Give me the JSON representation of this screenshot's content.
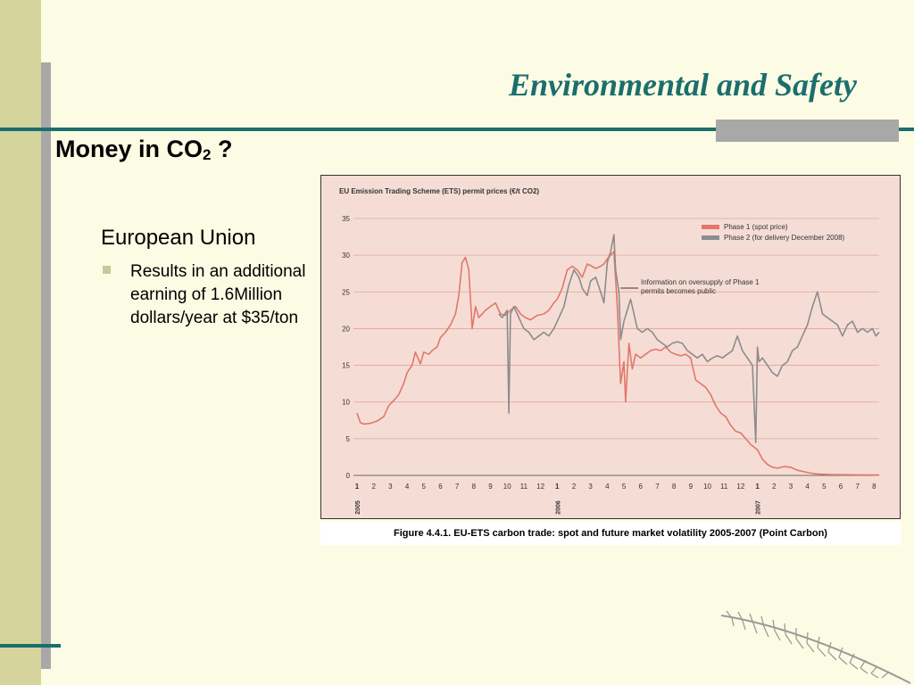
{
  "slide": {
    "title": "Environmental and Safety",
    "heading_text": "Money in CO",
    "heading_sub": "2",
    "heading_tail": " ?",
    "level1": "European Union",
    "bullet": "Results in an additional earning of 1.6Million dollars/year at $35/ton",
    "caption": "Figure 4.4.1. EU-ETS carbon trade: spot and future market volatility 2005-2007 (Point Carbon)"
  },
  "colors": {
    "accent": "#1c6e6e",
    "sidebar": "#d4d49c",
    "phase1": "#e2776a",
    "phase2": "#8c8c8c",
    "chart_bg": "#f5ddd6"
  },
  "chart_data": {
    "type": "line",
    "title": "EU Emission Trading Scheme (ETS) permit prices (€/t CO2)",
    "ylim": [
      0,
      35
    ],
    "y_ticks": [
      "0",
      "5",
      "10",
      "15",
      "20",
      "25",
      "30",
      "35"
    ],
    "x_ticks": [
      "1",
      "2",
      "3",
      "4",
      "5",
      "6",
      "7",
      "8",
      "9",
      "10",
      "11",
      "12",
      "1",
      "2",
      "3",
      "4",
      "5",
      "6",
      "7",
      "8",
      "9",
      "10",
      "11",
      "12",
      "1",
      "2",
      "3",
      "4",
      "5",
      "6",
      "7",
      "8"
    ],
    "year_labels": [
      {
        "label": "2005",
        "month_index": 0
      },
      {
        "label": "2006",
        "month_index": 12
      },
      {
        "label": "2007",
        "month_index": 24
      }
    ],
    "xlim": [
      0,
      31.3
    ],
    "grid": "horizontal",
    "legend_position": "top-right",
    "annotation": {
      "lines": [
        "Information on oversupply of Phase 1",
        "permits becomes public"
      ],
      "x": 15.8,
      "y": 26.5
    },
    "series": [
      {
        "name": "Phase 1 (spot price)",
        "x": [
          0,
          0.2,
          0.4,
          0.8,
          1.2,
          1.6,
          1.9,
          2.2,
          2.5,
          2.8,
          3.0,
          3.3,
          3.5,
          3.8,
          4.0,
          4.3,
          4.5,
          4.8,
          5.0,
          5.3,
          5.6,
          5.9,
          6.1,
          6.3,
          6.5,
          6.7,
          6.9,
          7.1,
          7.3,
          7.5,
          7.7,
          8.0,
          8.3,
          8.6,
          8.9,
          9.2,
          9.5,
          9.8,
          10.1,
          10.4,
          10.8,
          11.2,
          11.5,
          11.8,
          12.0,
          12.3,
          12.6,
          12.9,
          13.2,
          13.5,
          13.8,
          14.0,
          14.3,
          14.6,
          14.8,
          15.0,
          15.2,
          15.4,
          15.6,
          15.8,
          16.0,
          16.1,
          16.3,
          16.5,
          16.7,
          17.0,
          17.3,
          17.6,
          17.9,
          18.2,
          18.5,
          18.8,
          19.1,
          19.4,
          19.7,
          20.0,
          20.3,
          20.6,
          20.9,
          21.2,
          21.5,
          21.8,
          22.1,
          22.4,
          22.7,
          23.0,
          23.3,
          23.6,
          24.0,
          24.3,
          24.6,
          24.9,
          25.2,
          25.6,
          26.0,
          26.4,
          26.8,
          27.2,
          27.6,
          28.0,
          28.5,
          29.0,
          29.5,
          30.0,
          30.5,
          31.0,
          31.3
        ],
        "values": [
          8.5,
          7.2,
          7.0,
          7.1,
          7.4,
          8.0,
          9.5,
          10.2,
          11.0,
          12.5,
          14.0,
          15.0,
          16.8,
          15.2,
          16.8,
          16.5,
          17.0,
          17.5,
          18.8,
          19.5,
          20.5,
          22.0,
          24.5,
          29.0,
          29.7,
          28.0,
          20.0,
          23.0,
          21.5,
          22.0,
          22.5,
          23.0,
          23.5,
          22.0,
          21.8,
          22.5,
          23.0,
          22.0,
          21.5,
          21.2,
          21.8,
          22.0,
          22.5,
          23.5,
          24.0,
          25.5,
          28.0,
          28.5,
          28.0,
          27.0,
          28.8,
          28.6,
          28.2,
          28.5,
          28.8,
          29.5,
          30.0,
          30.5,
          23.0,
          12.5,
          15.5,
          10.0,
          18.0,
          14.5,
          16.5,
          16.0,
          16.5,
          17.0,
          17.2,
          17.0,
          17.5,
          16.8,
          16.5,
          16.3,
          16.5,
          16.0,
          13.0,
          12.5,
          12.0,
          11.0,
          9.5,
          8.5,
          8.0,
          6.8,
          6.0,
          5.8,
          5.0,
          4.2,
          3.5,
          2.2,
          1.5,
          1.1,
          1.0,
          1.2,
          1.1,
          0.7,
          0.5,
          0.3,
          0.2,
          0.15,
          0.1,
          0.1,
          0.08,
          0.07,
          0.06,
          0.05,
          0.05
        ]
      },
      {
        "name": "Phase 2 (for delivery December 2008)",
        "x": [
          8.5,
          8.7,
          9.0,
          9.1,
          9.2,
          9.4,
          9.7,
          10.0,
          10.3,
          10.6,
          10.9,
          11.2,
          11.5,
          11.8,
          12.1,
          12.4,
          12.7,
          13.0,
          13.3,
          13.5,
          13.8,
          14.0,
          14.3,
          14.6,
          14.8,
          15.0,
          15.2,
          15.4,
          15.5,
          15.7,
          15.8,
          16.0,
          16.2,
          16.4,
          16.6,
          16.8,
          17.1,
          17.4,
          17.7,
          18.0,
          18.3,
          18.6,
          18.9,
          19.2,
          19.5,
          19.8,
          20.1,
          20.4,
          20.7,
          21.0,
          21.3,
          21.6,
          21.9,
          22.2,
          22.5,
          22.8,
          23.1,
          23.4,
          23.7,
          23.9,
          24.0,
          24.1,
          24.3,
          24.6,
          24.9,
          25.2,
          25.5,
          25.8,
          26.1,
          26.4,
          26.7,
          27.0,
          27.3,
          27.6,
          27.9,
          28.2,
          28.5,
          28.8,
          29.1,
          29.4,
          29.7,
          30.0,
          30.3,
          30.6,
          30.9,
          31.1,
          31.3
        ],
        "values": [
          22.0,
          21.5,
          22.5,
          8.5,
          22.0,
          23.0,
          21.5,
          20.0,
          19.5,
          18.5,
          19.0,
          19.5,
          19.0,
          20.0,
          21.5,
          23.0,
          26.0,
          28.0,
          27.0,
          25.5,
          24.5,
          26.5,
          27.0,
          25.0,
          23.5,
          29.0,
          30.5,
          32.8,
          28.0,
          25.0,
          18.5,
          21.0,
          22.5,
          24.0,
          22.0,
          20.0,
          19.5,
          20.0,
          19.5,
          18.5,
          18.0,
          17.5,
          18.0,
          18.2,
          18.0,
          17.0,
          16.5,
          16.0,
          16.5,
          15.5,
          16.0,
          16.3,
          16.0,
          16.5,
          17.0,
          19.0,
          17.0,
          16.0,
          15.0,
          4.5,
          17.5,
          15.5,
          16.0,
          15.0,
          14.0,
          13.5,
          15.0,
          15.5,
          17.0,
          17.5,
          19.0,
          20.5,
          23.0,
          25.0,
          22.0,
          21.5,
          21.0,
          20.5,
          19.0,
          20.5,
          21.0,
          19.5,
          20.0,
          19.5,
          20.0,
          19.0,
          19.5
        ]
      }
    ]
  }
}
